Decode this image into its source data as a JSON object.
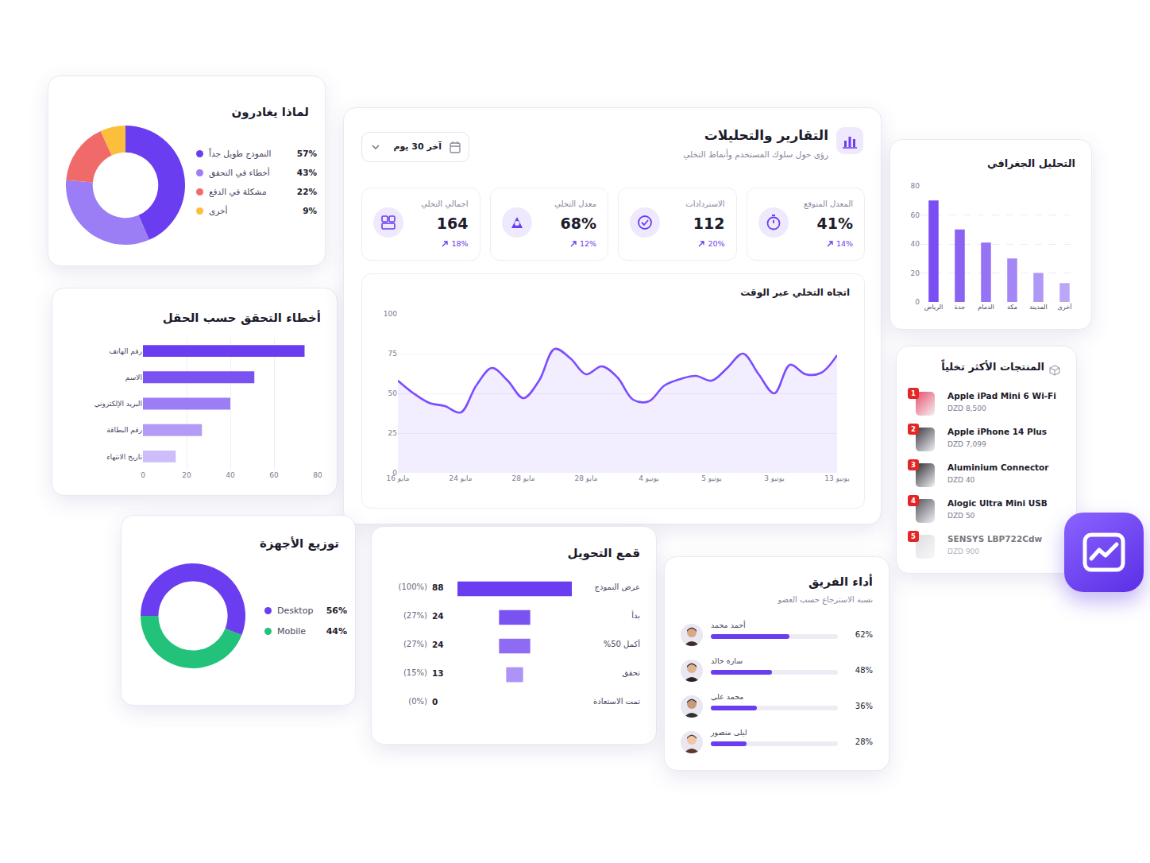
{
  "header": {
    "title": "التقارير والتحليلات",
    "subtitle": "رؤى حول سلوك المستخدم وأنماط التخلي",
    "date_filter": "آخر 30 يوم"
  },
  "kpis": [
    {
      "label": "اجمالي التخلي",
      "value": "164",
      "change": "18%"
    },
    {
      "label": "معدل التخلي",
      "value": "68%",
      "change": "12%"
    },
    {
      "label": "الاستردادات",
      "value": "112",
      "change": "20%"
    },
    {
      "label": "المعدل المتوقع",
      "value": "41%",
      "change": "14%"
    }
  ],
  "top_products": {
    "title": "المنتجات الأكثر تخلياً",
    "items": [
      {
        "rank": 1,
        "name": "Apple iPad Mini 6 Wi-Fi",
        "price": "DZD 8,500"
      },
      {
        "rank": 2,
        "name": "Apple iPhone 14 Plus",
        "price": "DZD 7,099"
      },
      {
        "rank": 3,
        "name": "Aluminium Connector",
        "price": "DZD 40"
      },
      {
        "rank": 4,
        "name": "Alogic Ultra Mini USB",
        "price": "DZD 50"
      },
      {
        "rank": 5,
        "name": "SENSYS LBP722Cdw",
        "price": "DZD 900"
      }
    ]
  },
  "chart_data": [
    {
      "type": "pie",
      "title": "لماذا يغادرون",
      "categories": [
        "النموذج طويل جداً",
        "أخطاء في التحقق",
        "مشكلة في الدفع",
        "أخرى"
      ],
      "values": [
        57,
        43,
        22,
        9
      ],
      "value_labels": [
        "57%",
        "43%",
        "22%",
        "9%"
      ],
      "colors": [
        "#6a3df0",
        "#9b7ef5",
        "#f06a6a",
        "#fbbf3c"
      ],
      "legend": "right"
    },
    {
      "type": "bar",
      "orientation": "horizontal",
      "title": "أخطاء التحقق حسب الحقل",
      "categories": [
        "رقم الهاتف",
        "الاسم",
        "البريد الإلكتروني",
        "رقم البطاقة",
        "تاريخ الانتهاء"
      ],
      "values": [
        74,
        51,
        40,
        27,
        15
      ],
      "colors": [
        "#6a3df0",
        "#7b52f2",
        "#9b7ef5",
        "#b39cf7",
        "#cdbdfa"
      ],
      "xlim": [
        0,
        80
      ],
      "xticks": [
        0,
        20,
        40,
        60,
        80
      ],
      "grid": true
    },
    {
      "type": "line",
      "title": "اتجاه التخلي عبر الوقت",
      "categories": [
        "16 مايو",
        null,
        null,
        null,
        "24 مايو",
        null,
        null,
        null,
        "28 مايو",
        null,
        null,
        null,
        "28 مايو",
        null,
        null,
        null,
        "4 يونيو",
        null,
        null,
        null,
        "5 يونيو",
        null,
        null,
        null,
        "3 يونيو",
        null,
        null,
        null,
        "13 يونيو"
      ],
      "values": [
        58,
        50,
        44,
        42,
        38,
        55,
        66,
        58,
        47,
        58,
        78,
        72,
        62,
        67,
        60,
        46,
        45,
        55,
        59,
        61,
        58,
        66,
        75,
        62,
        50,
        68,
        62,
        63,
        74
      ],
      "color": "#7c4dff",
      "line_style": "solid",
      "ylim": [
        0,
        100
      ],
      "yticks": [
        0,
        25,
        50,
        75,
        100
      ],
      "grid": true
    },
    {
      "type": "bar",
      "title": "التحليل الجغرافي",
      "categories": [
        "الرياض",
        "جدة",
        "الدمام",
        "مكة",
        "المدينة",
        "أخرى"
      ],
      "values": [
        70,
        50,
        41,
        30,
        20,
        13
      ],
      "colors": [
        "#7a4ef2",
        "#8a63f3",
        "#9673f5",
        "#a486f6",
        "#b098f7",
        "#bba6f8"
      ],
      "ylim": [
        0,
        80
      ],
      "yticks": [
        0,
        20,
        40,
        60,
        80
      ],
      "grid": true
    },
    {
      "type": "pie",
      "title": "توزيع الأجهزة",
      "categories": [
        "Desktop",
        "Mobile"
      ],
      "values": [
        56,
        44
      ],
      "value_labels": [
        "56%",
        "44%"
      ],
      "colors": [
        "#6a3df0",
        "#22c27a"
      ],
      "legend": "right"
    },
    {
      "type": "funnel",
      "title": "قمع التحويل",
      "categories": [
        "عرض النموذج",
        "بدأ",
        "أكمل 50%",
        "تحقق",
        "تمت الاستعادة"
      ],
      "values": [
        88,
        24,
        24,
        13,
        0
      ],
      "percent_labels": [
        "(100%)",
        "(27%)",
        "(27%)",
        "(15%)",
        "(0%)"
      ],
      "colors": [
        "#6a3df0",
        "#7b52f2",
        "#8f6bf4",
        "#ad92f7",
        "#22c27a"
      ],
      "data_labels": true,
      "tick_labels": false
    },
    {
      "type": "progress",
      "orientation": "horizontal",
      "title": "أداء الفريق",
      "subtitle": "نسبة الاسترجاع حسب العضو",
      "categories": [
        "أحمد محمد",
        "سارة خالد",
        "محمد علي",
        "ليلى منصور"
      ],
      "values": [
        62,
        48,
        36,
        28
      ],
      "value_labels": [
        "62%",
        "48%",
        "36%",
        "28%"
      ],
      "xlim": [
        0,
        100
      ],
      "color": "#6a3df0",
      "data_labels": true,
      "tick_labels": false
    }
  ]
}
